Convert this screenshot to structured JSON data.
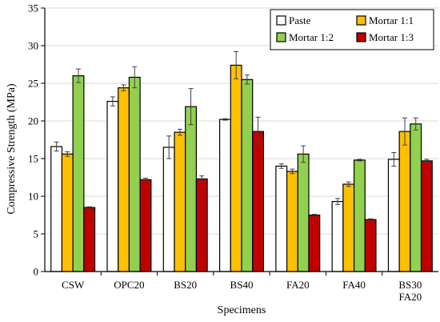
{
  "chart_data": {
    "type": "bar",
    "xlabel": "Specimens",
    "ylabel": "Compressive Strength (MPa)",
    "ylim": [
      0,
      35
    ],
    "yticks": [
      0,
      5,
      10,
      15,
      20,
      25,
      30,
      35
    ],
    "grid": "horizontal",
    "legend_position": "top-right",
    "categories": [
      [
        "CSW"
      ],
      [
        "OPC20"
      ],
      [
        "BS20"
      ],
      [
        "BS40"
      ],
      [
        "FA20"
      ],
      [
        "FA40"
      ],
      [
        "BS30",
        "FA20"
      ]
    ],
    "series": [
      {
        "name": "Paste",
        "color": "#ffffff",
        "values": [
          16.6,
          22.6,
          16.5,
          20.2,
          14.0,
          9.3,
          14.9
        ],
        "errors": [
          0.6,
          0.6,
          1.5,
          0.1,
          0.3,
          0.4,
          0.9
        ]
      },
      {
        "name": "Mortar 1:1",
        "color": "#ffc000",
        "values": [
          15.6,
          24.4,
          18.5,
          27.4,
          13.3,
          11.6,
          18.6
        ],
        "errors": [
          0.3,
          0.4,
          0.4,
          1.8,
          0.3,
          0.3,
          1.8
        ]
      },
      {
        "name": "Mortar 1:2",
        "color": "#92d050",
        "values": [
          26.0,
          25.8,
          21.9,
          25.5,
          15.6,
          14.8,
          19.6
        ],
        "errors": [
          0.9,
          1.4,
          2.4,
          0.6,
          1.1,
          0.1,
          0.8
        ]
      },
      {
        "name": "Mortar 1:3",
        "color": "#c00000",
        "values": [
          8.5,
          12.2,
          12.3,
          18.6,
          7.5,
          6.9,
          14.7
        ],
        "errors": [
          0.1,
          0.2,
          0.4,
          1.9,
          0.1,
          0.1,
          0.2
        ]
      }
    ]
  }
}
